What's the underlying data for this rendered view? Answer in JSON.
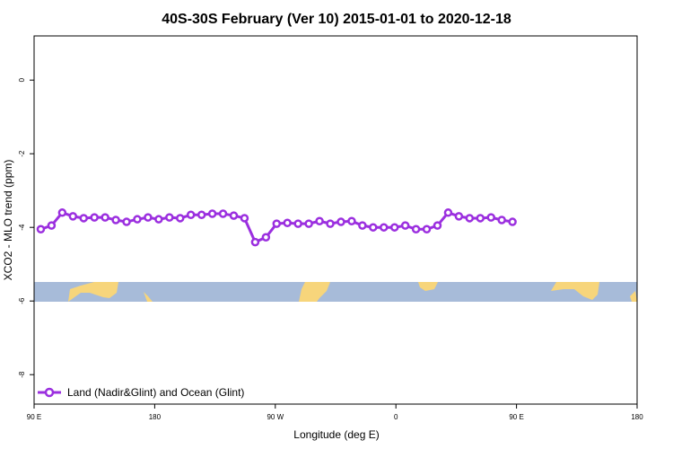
{
  "chart_data": {
    "type": "line",
    "title": "40S-30S February (Ver 10)   2015-01-01 to 2020-12-18",
    "x_label": "Longitude (deg E)",
    "y_label": "XCO2 - MLO trend (ppm)",
    "xlim": [
      90,
      540
    ],
    "ylim": [
      -8.8,
      1.2
    ],
    "xticks": [
      {
        "value": 90,
        "label": "90 E"
      },
      180,
      {
        "value": 270,
        "label": "90 W"
      },
      {
        "value": 360,
        "label": "0"
      },
      {
        "value": 450,
        "label": "90 E"
      },
      {
        "value": 540,
        "label": "180"
      }
    ],
    "yticks": [
      -8,
      -6,
      -4,
      -2,
      0
    ],
    "legend": "bottom-left",
    "series": [
      {
        "name": "Land (Nadir&Glint) and Ocean (Glint)",
        "color": "#9b2fdf",
        "x": [
          95,
          103,
          111,
          119,
          127,
          135,
          143,
          151,
          159,
          167,
          175,
          183,
          191,
          199,
          207,
          215,
          223,
          231,
          239,
          247,
          255,
          263,
          271,
          279,
          287,
          295,
          303,
          311,
          319,
          327,
          335,
          343,
          351,
          359,
          367,
          375,
          383,
          391,
          399,
          407,
          415,
          423,
          431,
          439,
          447
        ],
        "values": [
          -4.05,
          -3.95,
          -3.6,
          -3.7,
          -3.75,
          -3.73,
          -3.73,
          -3.8,
          -3.85,
          -3.78,
          -3.73,
          -3.78,
          -3.73,
          -3.75,
          -3.66,
          -3.66,
          -3.63,
          -3.63,
          -3.68,
          -3.75,
          -4.4,
          -4.27,
          -3.9,
          -3.88,
          -3.9,
          -3.9,
          -3.83,
          -3.9,
          -3.85,
          -3.83,
          -3.95,
          -4.0,
          -4.0,
          -4.0,
          -3.95,
          -4.05,
          -4.05,
          -3.95,
          -3.6,
          -3.7,
          -3.75,
          -3.75,
          -3.73,
          -3.8,
          -3.85
        ]
      }
    ]
  }
}
